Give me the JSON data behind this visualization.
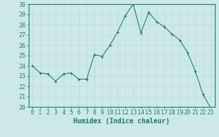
{
  "x": [
    0,
    1,
    2,
    3,
    4,
    5,
    6,
    7,
    8,
    9,
    10,
    11,
    12,
    13,
    14,
    15,
    16,
    17,
    18,
    19,
    20,
    21,
    22,
    23
  ],
  "y": [
    24.0,
    23.3,
    23.2,
    22.5,
    23.2,
    23.3,
    22.7,
    22.7,
    25.1,
    24.9,
    26.0,
    27.3,
    28.9,
    30.0,
    27.2,
    29.2,
    28.3,
    27.8,
    27.1,
    26.5,
    25.3,
    23.5,
    21.2,
    19.9
  ],
  "xlabel": "Humidex (Indice chaleur)",
  "ylabel": "",
  "xlim": [
    -0.5,
    23.5
  ],
  "ylim": [
    20,
    30
  ],
  "yticks": [
    20,
    21,
    22,
    23,
    24,
    25,
    26,
    27,
    28,
    29,
    30
  ],
  "xticks": [
    0,
    1,
    2,
    3,
    4,
    5,
    6,
    7,
    8,
    9,
    10,
    11,
    12,
    13,
    14,
    15,
    16,
    17,
    18,
    19,
    20,
    21,
    22,
    23
  ],
  "line_color": "#1a7a6e",
  "marker": "+",
  "bg_color": "#cce9e7",
  "grid_color": "#b8d8d6",
  "axis_color": "#1a7a6e",
  "tick_label_color": "#1a7a6e",
  "xlabel_color": "#1a7a6e",
  "xlabel_fontsize": 7,
  "tick_fontsize": 6
}
